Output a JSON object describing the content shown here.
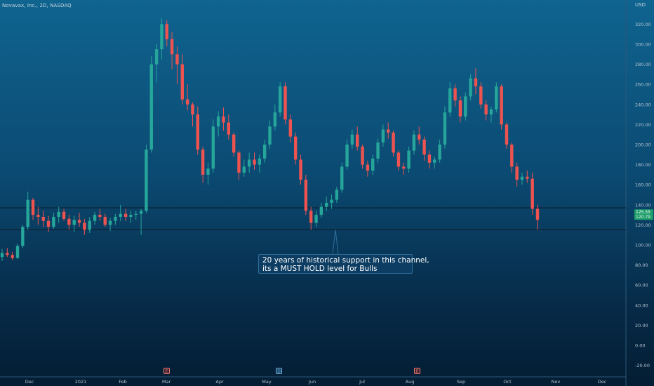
{
  "header": {
    "symbol_line": "Novavax, Inc., 2D, NASDAQ",
    "currency": "USD"
  },
  "annotation": {
    "lines": [
      "20 years of historical support in this channel,",
      "its a MUST HOLD level for Bulls"
    ],
    "points_to": 115
  },
  "event_markers": [
    {
      "label": "E",
      "at": "Mar",
      "color": "#f0776f"
    },
    {
      "label": "D",
      "at": "May/Jun",
      "color": "#6fb1dc"
    },
    {
      "label": "E",
      "at": "Aug",
      "color": "#f0776f"
    }
  ],
  "price_badges": {
    "last": "125.55",
    "secondary": "120.79"
  },
  "colors": {
    "up": "#26a69a",
    "down": "#ef5350",
    "line": "#0a1a24",
    "badge": "#1f9e6b"
  },
  "chart_data": {
    "type": "candlestick",
    "title": "",
    "ylabel": "",
    "xlabel": "",
    "ylim": [
      -20,
      330
    ],
    "yticks": [
      -20,
      0,
      20,
      40,
      60,
      80,
      100,
      120,
      140,
      160,
      180,
      200,
      220,
      240,
      260,
      280,
      300,
      320
    ],
    "xticks": [
      "Dec",
      "2021",
      "Feb",
      "Mar",
      "Apr",
      "May",
      "Jun",
      "Jul",
      "Aug",
      "Sep",
      "Oct",
      "Nov",
      "Dec"
    ],
    "horizontal_levels": [
      137,
      115
    ],
    "grid": false,
    "candles": [
      [
        88,
        96,
        84,
        92
      ],
      [
        92,
        97,
        88,
        90
      ],
      [
        90,
        93,
        85,
        87
      ],
      [
        87,
        101,
        86,
        99
      ],
      [
        99,
        120,
        97,
        118
      ],
      [
        118,
        153,
        115,
        145
      ],
      [
        145,
        147,
        125,
        130
      ],
      [
        130,
        138,
        120,
        128
      ],
      [
        128,
        134,
        118,
        124
      ],
      [
        124,
        129,
        113,
        118
      ],
      [
        118,
        132,
        116,
        128
      ],
      [
        128,
        138,
        122,
        133
      ],
      [
        133,
        136,
        124,
        126
      ],
      [
        126,
        130,
        115,
        120
      ],
      [
        120,
        129,
        113,
        125
      ],
      [
        125,
        132,
        118,
        122
      ],
      [
        122,
        126,
        110,
        115
      ],
      [
        115,
        128,
        112,
        124
      ],
      [
        124,
        133,
        120,
        130
      ],
      [
        130,
        136,
        124,
        128
      ],
      [
        128,
        131,
        118,
        120
      ],
      [
        120,
        127,
        114,
        124
      ],
      [
        124,
        131,
        120,
        128
      ],
      [
        128,
        140,
        124,
        131
      ],
      [
        131,
        136,
        124,
        128
      ],
      [
        128,
        134,
        122,
        130
      ],
      [
        130,
        134,
        125,
        131
      ],
      [
        131,
        136,
        110,
        134
      ],
      [
        134,
        200,
        132,
        195
      ],
      [
        195,
        288,
        192,
        280
      ],
      [
        280,
        300,
        262,
        295
      ],
      [
        295,
        326,
        285,
        320
      ],
      [
        320,
        324,
        298,
        305
      ],
      [
        305,
        312,
        275,
        290
      ],
      [
        290,
        298,
        260,
        280
      ],
      [
        280,
        290,
        240,
        245
      ],
      [
        245,
        260,
        234,
        240
      ],
      [
        240,
        242,
        218,
        230
      ],
      [
        230,
        238,
        190,
        195
      ],
      [
        195,
        198,
        162,
        170
      ],
      [
        170,
        182,
        160,
        176
      ],
      [
        176,
        225,
        172,
        218
      ],
      [
        218,
        233,
        208,
        228
      ],
      [
        228,
        237,
        214,
        222
      ],
      [
        222,
        230,
        205,
        210
      ],
      [
        210,
        212,
        188,
        192
      ],
      [
        192,
        194,
        165,
        172
      ],
      [
        172,
        185,
        168,
        178
      ],
      [
        178,
        192,
        172,
        185
      ],
      [
        185,
        192,
        175,
        180
      ],
      [
        180,
        190,
        172,
        186
      ],
      [
        186,
        205,
        182,
        200
      ],
      [
        200,
        224,
        196,
        218
      ],
      [
        218,
        240,
        214,
        232
      ],
      [
        232,
        262,
        228,
        258
      ],
      [
        258,
        262,
        220,
        225
      ],
      [
        225,
        230,
        202,
        208
      ],
      [
        208,
        212,
        180,
        185
      ],
      [
        185,
        190,
        160,
        165
      ],
      [
        165,
        170,
        130,
        134
      ],
      [
        134,
        138,
        115,
        122
      ],
      [
        122,
        134,
        118,
        130
      ],
      [
        130,
        142,
        127,
        138
      ],
      [
        138,
        148,
        134,
        142
      ],
      [
        142,
        150,
        136,
        145
      ],
      [
        145,
        158,
        142,
        155
      ],
      [
        155,
        182,
        152,
        178
      ],
      [
        178,
        205,
        175,
        200
      ],
      [
        200,
        215,
        196,
        210
      ],
      [
        210,
        218,
        194,
        198
      ],
      [
        198,
        200,
        176,
        180
      ],
      [
        180,
        184,
        168,
        174
      ],
      [
        174,
        190,
        170,
        186
      ],
      [
        186,
        206,
        182,
        202
      ],
      [
        202,
        220,
        198,
        215
      ],
      [
        215,
        222,
        206,
        212
      ],
      [
        212,
        214,
        188,
        192
      ],
      [
        192,
        194,
        174,
        178
      ],
      [
        178,
        182,
        170,
        176
      ],
      [
        176,
        198,
        172,
        194
      ],
      [
        194,
        214,
        190,
        210
      ],
      [
        210,
        218,
        200,
        205
      ],
      [
        205,
        208,
        184,
        190
      ],
      [
        190,
        194,
        176,
        182
      ],
      [
        182,
        188,
        176,
        185
      ],
      [
        185,
        205,
        182,
        200
      ],
      [
        200,
        238,
        196,
        232
      ],
      [
        232,
        262,
        228,
        256
      ],
      [
        256,
        260,
        238,
        244
      ],
      [
        244,
        248,
        222,
        228
      ],
      [
        228,
        252,
        224,
        248
      ],
      [
        248,
        270,
        244,
        266
      ],
      [
        266,
        276,
        250,
        258
      ],
      [
        258,
        262,
        236,
        240
      ],
      [
        240,
        244,
        224,
        230
      ],
      [
        230,
        238,
        222,
        235
      ],
      [
        235,
        262,
        232,
        258
      ],
      [
        258,
        260,
        215,
        220
      ],
      [
        220,
        222,
        196,
        200
      ],
      [
        200,
        202,
        172,
        178
      ],
      [
        178,
        182,
        158,
        165
      ],
      [
        165,
        172,
        160,
        168
      ],
      [
        168,
        174,
        162,
        166
      ],
      [
        166,
        172,
        130,
        136
      ],
      [
        136,
        140,
        115,
        125
      ]
    ]
  }
}
